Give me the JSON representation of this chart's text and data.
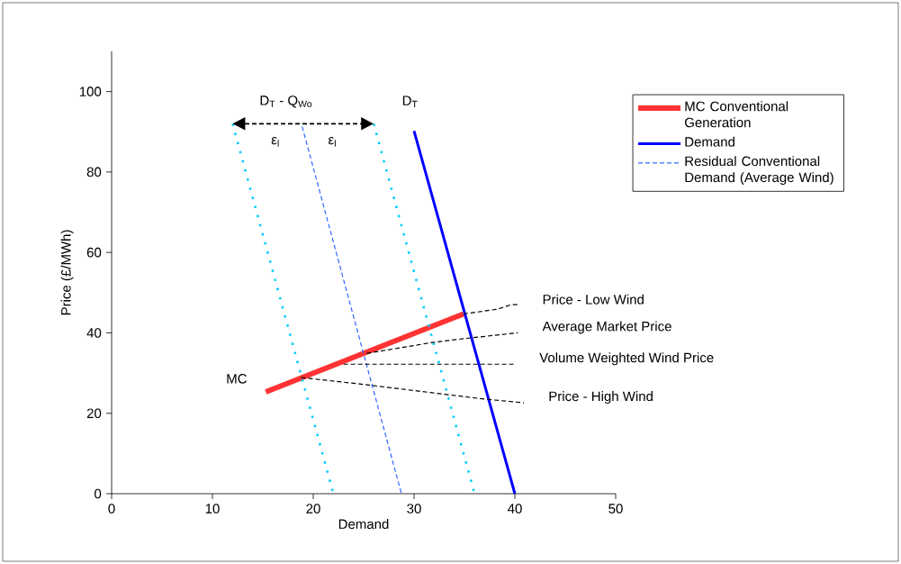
{
  "chart_data": {
    "type": "line",
    "xlabel": "Demand",
    "ylabel": "Price (£/MWh)",
    "xlim": [
      0,
      50
    ],
    "ylim": [
      0,
      110
    ],
    "xticks": [
      0,
      10,
      20,
      30,
      40,
      50
    ],
    "yticks": [
      0,
      20,
      40,
      60,
      80,
      100
    ],
    "legend": "right",
    "series": [
      {
        "name": "MC Conventional Generation",
        "color": "#ff3333",
        "line_style": "solid",
        "x": [
          15.3,
          34.9
        ],
        "values": [
          25.3,
          44.7
        ]
      },
      {
        "name": "Demand",
        "color": "#0000ff",
        "line_style": "solid",
        "x": [
          30,
          40
        ],
        "values": [
          90.2,
          0
        ]
      },
      {
        "name": "Residual Conventional Demand (Average Wind)",
        "color": "#3366ff",
        "line_style": "dashed",
        "x": [
          18.9,
          28.75
        ],
        "values": [
          91.3,
          0
        ]
      },
      {
        "color": "#00ccff",
        "line_style": "dotted",
        "x": [
          12,
          22
        ],
        "values": [
          92,
          0
        ]
      },
      {
        "color": "#00ccff",
        "line_style": "dotted",
        "x": [
          26,
          36
        ],
        "values": [
          92,
          0
        ]
      },
      {
        "name": "Price - Low Wind",
        "color": "#000000",
        "line_style": "dashed",
        "x": [
          34.9,
          38.3,
          39.6,
          40.3
        ],
        "values": [
          44.7,
          45.9,
          47.0,
          47.0
        ]
      },
      {
        "name": "Average Market Price",
        "color": "#000000",
        "line_style": "dashed",
        "x": [
          25.3,
          31.8,
          35.4,
          40.3
        ],
        "values": [
          34.9,
          37.6,
          38.7,
          40.0
        ]
      },
      {
        "name": "Volume Weighted Wind Price",
        "color": "#000000",
        "line_style": "dashed",
        "x": [
          23.0,
          40.0
        ],
        "values": [
          32.2,
          32.2
        ]
      },
      {
        "name": "Price - High Wind",
        "color": "#000000",
        "line_style": "dashed",
        "x": [
          18.8,
          24.6,
          31.8,
          37.1,
          40.9
        ],
        "values": [
          28.9,
          27.3,
          25.1,
          23.5,
          22.6
        ]
      }
    ],
    "annotations": [
      "D$_{T}$ - Q$_{Wo}$",
      "D$_{T}$",
      "ε$_{l}$",
      "ε$_{l}$",
      "MC"
    ]
  }
}
